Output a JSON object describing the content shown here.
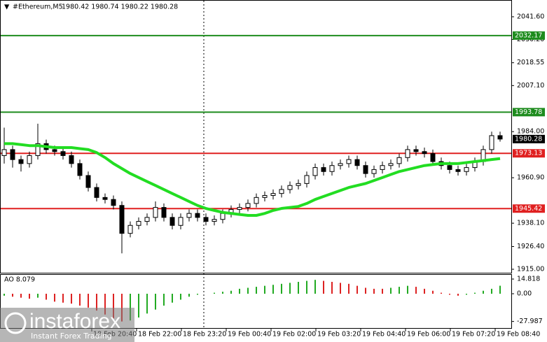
{
  "chart_data": {
    "type": "candlestick",
    "symbol": "#Ethereum,M5",
    "ohlc_text": "1980.42 1980.74 1980.22 1980.28",
    "ylim": [
      1913.25,
      2049.3
    ],
    "yticks": [
      {
        "value": 2041.6,
        "label": "2041.60"
      },
      {
        "value": 2030.2,
        "label": "2030.20"
      },
      {
        "value": 2018.55,
        "label": "2018.55"
      },
      {
        "value": 2007.1,
        "label": "2007.10"
      },
      {
        "value": 1984,
        "label": "1984.00"
      },
      {
        "value": 1960.9,
        "label": "1960.90"
      },
      {
        "value": 1938.1,
        "label": "1938.10"
      },
      {
        "value": 1926.4,
        "label": "1926.40"
      },
      {
        "value": 1915,
        "label": "1915.00"
      }
    ],
    "xticks": [
      "18 Feb 20:40",
      "18 Feb 22:00",
      "18 Feb 23:20",
      "19 Feb 00:40",
      "19 Feb 02:00",
      "19 Feb 03:20",
      "19 Feb 04:40",
      "19 Feb 06:00",
      "19 Feb 07:20",
      "19 Feb 08:40"
    ],
    "open": [
      1972,
      1975,
      1970,
      1968,
      1972,
      1978,
      1975,
      1974,
      1972,
      1968,
      1962,
      1956,
      1951,
      1950,
      1947,
      1933,
      1937,
      1939,
      1941,
      1946,
      1941,
      1937,
      1941,
      1943,
      1941,
      1939,
      1940,
      1943,
      1945,
      1946,
      1948,
      1951,
      1952,
      1953,
      1955,
      1957,
      1958,
      1962,
      1966,
      1964,
      1967,
      1968,
      1970,
      1967,
      1963,
      1965,
      1967,
      1968,
      1971,
      1975,
      1974,
      1973,
      1969,
      1967,
      1965,
      1964,
      1966,
      1969,
      1975,
      1982
    ],
    "high": [
      1986,
      1977,
      1972,
      1974,
      1988,
      1980,
      1977,
      1976,
      1974,
      1970,
      1964,
      1958,
      1953,
      1952,
      1949,
      1939,
      1941,
      1943,
      1949,
      1948,
      1943,
      1943,
      1945,
      1945,
      1943,
      1942,
      1945,
      1947,
      1948,
      1950,
      1953,
      1954,
      1955,
      1957,
      1959,
      1960,
      1964,
      1968,
      1968,
      1969,
      1970,
      1972,
      1972,
      1969,
      1967,
      1969,
      1970,
      1973,
      1977,
      1977,
      1976,
      1975,
      1971,
      1969,
      1967,
      1968,
      1971,
      1977,
      1984,
      1984
    ],
    "low": [
      1968,
      1966,
      1964,
      1966,
      1970,
      1973,
      1972,
      1970,
      1966,
      1960,
      1954,
      1949,
      1948,
      1945,
      1923,
      1931,
      1935,
      1937,
      1939,
      1939,
      1935,
      1935,
      1939,
      1939,
      1937,
      1937,
      1938,
      1941,
      1943,
      1944,
      1946,
      1949,
      1950,
      1951,
      1953,
      1955,
      1956,
      1960,
      1962,
      1962,
      1965,
      1966,
      1965,
      1961,
      1961,
      1963,
      1965,
      1966,
      1969,
      1972,
      1971,
      1967,
      1965,
      1963,
      1962,
      1962,
      1964,
      1967,
      1973,
      1979
    ],
    "close": [
      1975,
      1970,
      1968,
      1972,
      1978,
      1975,
      1974,
      1972,
      1968,
      1962,
      1956,
      1951,
      1950,
      1947,
      1933,
      1937,
      1939,
      1941,
      1946,
      1941,
      1937,
      1941,
      1943,
      1941,
      1939,
      1940,
      1943,
      1945,
      1946,
      1948,
      1951,
      1952,
      1953,
      1955,
      1957,
      1958,
      1962,
      1966,
      1964,
      1967,
      1968,
      1970,
      1967,
      1963,
      1965,
      1967,
      1968,
      1971,
      1975,
      1974,
      1973,
      1969,
      1967,
      1965,
      1964,
      1966,
      1969,
      1975,
      1982,
      1980.28
    ],
    "ma": {
      "color": "#22dd22",
      "values": [
        1978,
        1978,
        1977.5,
        1977,
        1977,
        1976.5,
        1976,
        1976,
        1976,
        1975.5,
        1975,
        1973.5,
        1971,
        1968,
        1965.5,
        1963,
        1961,
        1959,
        1957,
        1955,
        1953,
        1951,
        1949,
        1947,
        1945.5,
        1944.5,
        1943.5,
        1943,
        1942.5,
        1942,
        1942,
        1943,
        1944.5,
        1945.5,
        1946,
        1946.5,
        1948,
        1950,
        1951.5,
        1953,
        1954.5,
        1956,
        1957,
        1958,
        1959.5,
        1961,
        1962.5,
        1964,
        1965,
        1966,
        1967,
        1967.5,
        1968,
        1968,
        1968,
        1968.5,
        1969,
        1969.5,
        1970,
        1970.5
      ]
    },
    "levels": [
      {
        "value": 2032.17,
        "color": "#1e8c1e"
      },
      {
        "value": 1993.78,
        "color": "#1e8c1e"
      },
      {
        "value": 1973.13,
        "color": "#e02020"
      },
      {
        "value": 1945.42,
        "color": "#e02020"
      }
    ],
    "last_price": 1980.28,
    "ao": {
      "label": "AO 8.079",
      "up_color": "#22aa22",
      "down_color": "#dd2222",
      "ylim": [
        -34.6,
        19.05
      ],
      "yticks": [
        14.818,
        {
          "value": 0,
          "label": "0.00"
        },
        -27.987
      ],
      "values": [
        -2,
        -3,
        -4,
        -5,
        -4,
        -6,
        -8,
        -9,
        -10,
        -12,
        -14,
        -17,
        -21,
        -25,
        -28,
        -27,
        -24,
        -20,
        -16,
        -12,
        -9,
        -6,
        -3,
        -1,
        0,
        1,
        2,
        3,
        5,
        6,
        7,
        8,
        9,
        10,
        11,
        12,
        13,
        14,
        13,
        12,
        11,
        10,
        8,
        6,
        5,
        5,
        6,
        7,
        8,
        7,
        5,
        3,
        1,
        -1,
        -2,
        -1,
        1,
        3,
        5,
        8.079
      ]
    },
    "logo": {
      "name": "instaforex",
      "slogan": "Instant Forex Trading"
    }
  }
}
